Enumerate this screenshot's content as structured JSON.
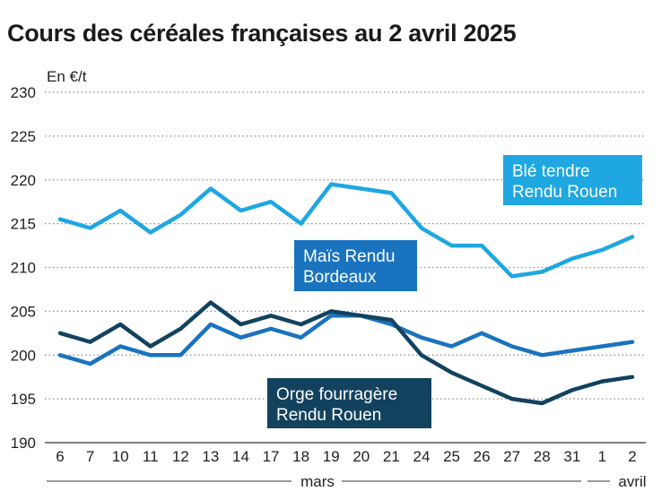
{
  "chart_data": {
    "type": "line",
    "title": "Cours des céréales françaises au 2 avril 2025",
    "ylabel": "En €/t",
    "xlabel": "",
    "ylim": [
      190,
      230
    ],
    "yticks": [
      190,
      195,
      200,
      205,
      210,
      215,
      220,
      225,
      230
    ],
    "grid": "horizontal dotted",
    "categories": [
      "6",
      "7",
      "10",
      "11",
      "12",
      "13",
      "14",
      "17",
      "18",
      "19",
      "20",
      "21",
      "24",
      "25",
      "26",
      "27",
      "28",
      "31",
      "1",
      "2"
    ],
    "month_labels": [
      "mars",
      "avril"
    ],
    "series": [
      {
        "name_lines": [
          "Blé tendre",
          "Rendu Rouen"
        ],
        "color": "#1ea7e1",
        "values": [
          215.5,
          214.5,
          216.5,
          214.0,
          216.0,
          219.0,
          216.5,
          217.5,
          215.0,
          219.5,
          219.0,
          218.5,
          214.5,
          212.5,
          212.5,
          209.0,
          209.5,
          211.0,
          212.0,
          213.5
        ]
      },
      {
        "name_lines": [
          "Maïs Rendu",
          "Bordeaux"
        ],
        "color": "#1a73bf",
        "values": [
          200.0,
          199.0,
          201.0,
          200.0,
          200.0,
          203.5,
          202.0,
          203.0,
          202.0,
          204.5,
          204.5,
          203.5,
          202.0,
          201.0,
          202.5,
          201.0,
          200.0,
          200.5,
          201.0,
          201.5
        ]
      },
      {
        "name_lines": [
          "Orge fourragère",
          "Rendu Rouen"
        ],
        "color": "#13425f",
        "values": [
          202.5,
          201.5,
          203.5,
          201.0,
          203.0,
          206.0,
          203.5,
          204.5,
          203.5,
          205.0,
          204.5,
          204.0,
          200.0,
          198.0,
          196.5,
          195.0,
          194.5,
          196.0,
          197.0,
          197.5
        ]
      }
    ]
  }
}
